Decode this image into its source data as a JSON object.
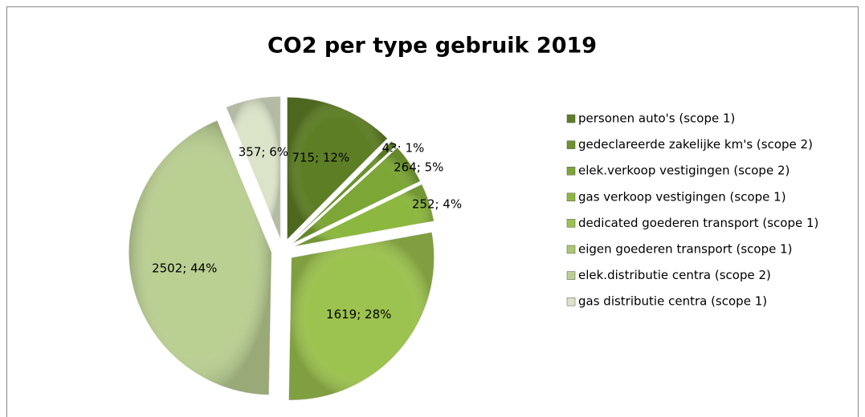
{
  "chart_data": {
    "type": "pie",
    "title": "CO2 per type gebruik 2019",
    "categories": [
      "personen auto's (scope 1)",
      "gedeclareerde zakelijke km's (scope 2)",
      "elek.verkoop vestigingen (scope 2)",
      "gas verkoop vestigingen (scope 1)",
      "dedicated goederen transport (scope 1)",
      "eigen goederen transport (scope 1)",
      "elek.distributie centra (scope 2)",
      "gas distributie centra (scope 1)"
    ],
    "values": [
      715,
      43,
      264,
      252,
      1619,
      0,
      2502,
      357
    ],
    "value_labels": [
      "715; 12%",
      "43; 1%",
      "264; 5%",
      "252; 4%",
      "1619; 28%",
      null,
      "2502; 44%",
      "357; 6%"
    ],
    "colors": [
      "#5e7e26",
      "#6c922e",
      "#7ca636",
      "#8cb83f",
      "#9cc24f",
      "#acc972",
      "#bacf92",
      "#dbe4c9"
    ],
    "legend": "right"
  }
}
